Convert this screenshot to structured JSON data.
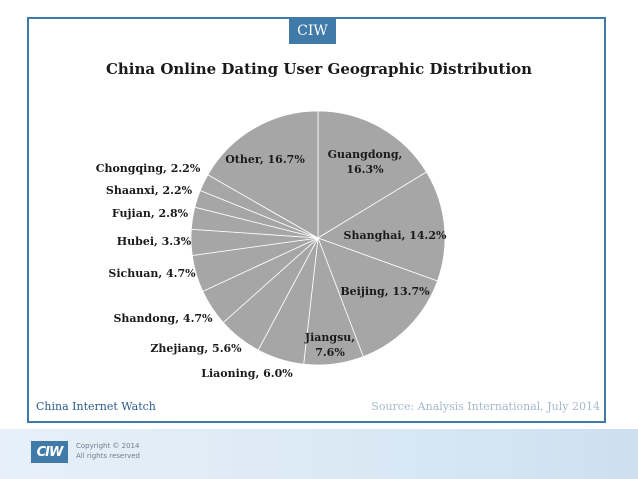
{
  "brand_tag": "CIW",
  "chart_data": {
    "type": "pie",
    "title": "China Online Dating User Geographic Distribution",
    "slices": [
      {
        "label": "Guangdong, 16.3%",
        "name": "Guangdong",
        "value": 16.3
      },
      {
        "label": "Shanghai, 14.2%",
        "name": "Shanghai",
        "value": 14.2
      },
      {
        "label": "Beijing, 13.7%",
        "name": "Beijing",
        "value": 13.7
      },
      {
        "label": "Jiangsu, 7.6%",
        "name": "Jiangsu",
        "value": 7.6
      },
      {
        "label": "Liaoning, 6.0%",
        "name": "Liaoning",
        "value": 6.0
      },
      {
        "label": "Zhejiang, 5.6%",
        "name": "Zhejiang",
        "value": 5.6
      },
      {
        "label": "Shandong, 4.7%",
        "name": "Shandong",
        "value": 4.7
      },
      {
        "label": "Sichuan, 4.7%",
        "name": "Sichuan",
        "value": 4.7
      },
      {
        "label": "Hubei, 3.3%",
        "name": "Hubei",
        "value": 3.3
      },
      {
        "label": "Fujian, 2.8%",
        "name": "Fujian",
        "value": 2.8
      },
      {
        "label": "Shaanxi, 2.2%",
        "name": "Shaanxi",
        "value": 2.2
      },
      {
        "label": "Chongqing, 2.2%",
        "name": "Chongqing",
        "value": 2.2
      },
      {
        "label": "Other, 16.7%",
        "name": "Other",
        "value": 16.7
      }
    ],
    "slice_color": "#a6a6a6",
    "border_color": "#ffffff",
    "legend": "none"
  },
  "footer": {
    "left": "China Internet Watch",
    "right": "Source: Analysis International, July 2014"
  },
  "bottom_bar": {
    "logo_text": "CIW",
    "copyright_line1": "Copyright © 2014",
    "copyright_line2": "All rights reserved"
  },
  "colors": {
    "accent": "#3f7aa9",
    "footer_left": "#2b5d8a",
    "footer_right": "#a5b9cc"
  }
}
